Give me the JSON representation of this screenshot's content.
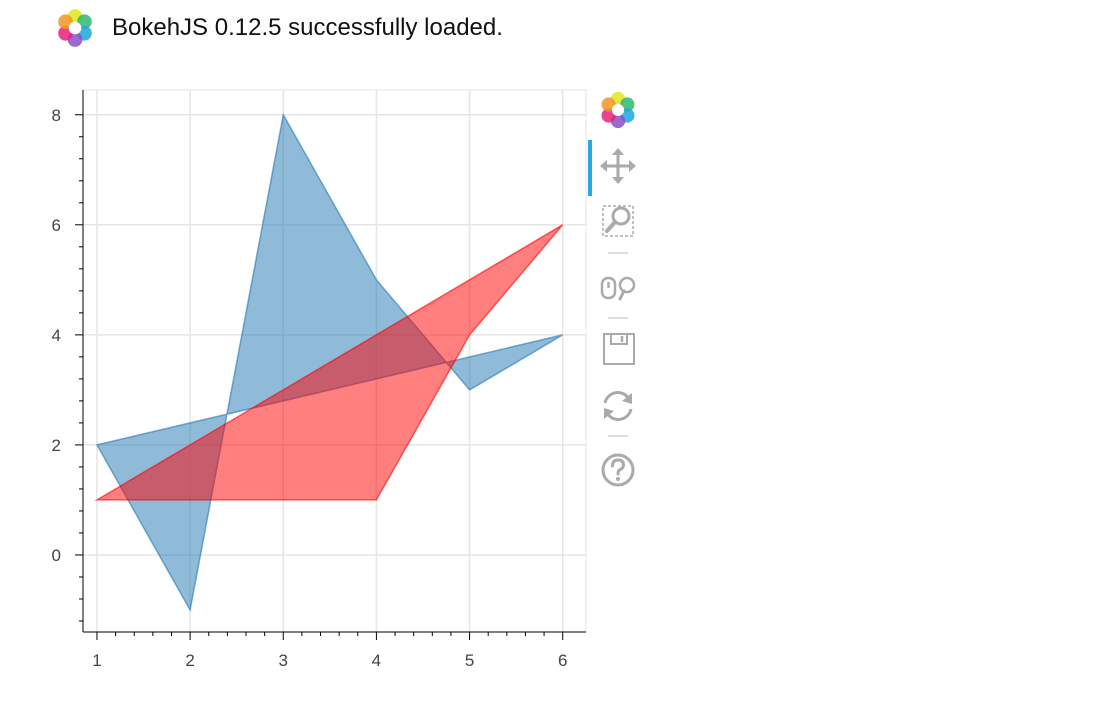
{
  "banner": {
    "message": "BokehJS 0.12.5 successfully loaded.",
    "logo_icon": "bokeh-logo-icon"
  },
  "toolbar": {
    "logo_icon": "bokeh-logo-icon",
    "active_indicator_color": "#26aae1",
    "tools": [
      {
        "name": "pan",
        "icon": "pan-icon",
        "active": true
      },
      {
        "name": "box_zoom",
        "icon": "box-zoom-icon",
        "active": false
      },
      {
        "name": "wheel_zoom",
        "icon": "wheel-zoom-icon",
        "active": false
      },
      {
        "name": "save",
        "icon": "save-icon",
        "active": false
      },
      {
        "name": "reset",
        "icon": "reset-icon",
        "active": false
      },
      {
        "name": "help",
        "icon": "help-icon",
        "active": false
      }
    ]
  },
  "chart_data": {
    "type": "area",
    "title": "",
    "xlabel": "",
    "ylabel": "",
    "xlim": [
      0.85,
      6.25
    ],
    "ylim": [
      -1.4,
      8.45
    ],
    "x_ticks": [
      1,
      2,
      3,
      4,
      5,
      6
    ],
    "y_ticks": [
      0,
      2,
      4,
      6,
      8
    ],
    "grid": true,
    "legend": "none",
    "series": [
      {
        "color": "#1f77b4",
        "alpha": 0.5,
        "x": [
          1,
          2,
          3,
          4,
          5,
          6
        ],
        "y": [
          2,
          -1,
          8,
          5,
          3,
          4
        ]
      },
      {
        "color": "#ff0000",
        "alpha": 0.5,
        "x": [
          1,
          4,
          5,
          6
        ],
        "y": [
          1,
          1,
          4,
          6
        ]
      }
    ]
  }
}
